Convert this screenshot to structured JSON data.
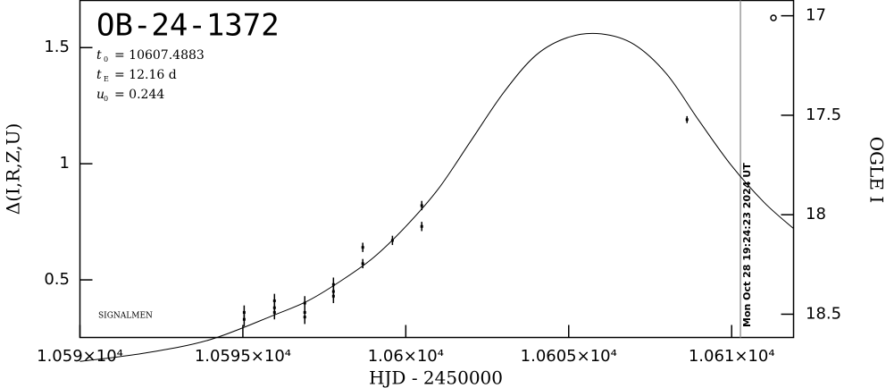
{
  "chart_data": {
    "type": "scatter",
    "title": "OB-24-1372",
    "annotations": [
      {
        "var": "t",
        "sub": "0",
        "text": "= 10607.4883"
      },
      {
        "var": "t",
        "sub": "E",
        "text": "= 12.16 d"
      },
      {
        "var": "u",
        "sub": "0",
        "text": "= 0.244"
      }
    ],
    "credit": "SIGNALMEN",
    "x_label": "HJD - 2450000",
    "y_label": "Δ(I,R,Z,U)",
    "y2_label": "OGLE I",
    "date_line": {
      "x": 10610.27,
      "label": "Mon Oct 28 19:24:23 2024 UT",
      "color": "#999999"
    },
    "xlim": [
      10590,
      10611.9
    ],
    "xticks": [
      {
        "value": 10590,
        "label": "1.059×10⁴"
      },
      {
        "value": 10595,
        "label": "1.0595×10⁴"
      },
      {
        "value": 10600,
        "label": "1.06×10⁴"
      },
      {
        "value": 10605,
        "label": "1.0605×10⁴"
      },
      {
        "value": 10610,
        "label": "1.061×10⁴"
      }
    ],
    "ylim": [
      0.252,
      1.703
    ],
    "yticks": [
      0.5,
      1,
      1.5
    ],
    "y2lim": [
      18.617,
      16.923
    ],
    "y2ticks": [
      17,
      17.5,
      18,
      18.5
    ],
    "series": [
      {
        "type": "line",
        "color": "#000000",
        "x": [
          10590,
          10592,
          10594,
          10596,
          10597,
          10598,
          10599,
          10600,
          10601,
          10602,
          10603,
          10604,
          10605,
          10606,
          10607,
          10608,
          10609,
          10610,
          10611,
          10611.9
        ],
        "values": [
          0.149,
          0.185,
          0.243,
          0.351,
          0.41,
          0.495,
          0.595,
          0.73,
          0.892,
          1.099,
          1.306,
          1.468,
          1.545,
          1.559,
          1.514,
          1.387,
          1.185,
          0.991,
          0.833,
          0.721
        ]
      },
      {
        "type": "errorbar",
        "color": "#000000",
        "x": [
          10595.04,
          10595.04,
          10595.97,
          10595.97,
          10595.97,
          10596.9,
          10596.9,
          10596.9,
          10597.78,
          10597.78,
          10597.78,
          10598.68,
          10598.68,
          10599.59,
          10600.49,
          10600.49,
          10608.63
        ],
        "values": [
          0.36,
          0.33,
          0.41,
          0.38,
          0.36,
          0.4,
          0.36,
          0.34,
          0.48,
          0.45,
          0.43,
          0.64,
          0.57,
          0.67,
          0.82,
          0.73,
          1.19
        ],
        "errors": [
          0.03,
          0.03,
          0.03,
          0.03,
          0.03,
          0.03,
          0.03,
          0.03,
          0.03,
          0.03,
          0.03,
          0.02,
          0.02,
          0.02,
          0.02,
          0.02,
          0.015
        ]
      }
    ]
  }
}
